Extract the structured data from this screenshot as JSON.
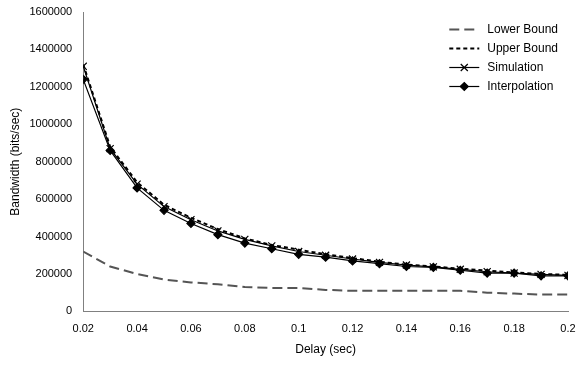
{
  "chart_data": {
    "type": "line",
    "x_label": "Delay (sec)",
    "y_label": "Bandwidth (bits/sec)",
    "x": [
      0.02,
      0.03,
      0.04,
      0.05,
      0.06,
      0.07,
      0.08,
      0.09,
      0.1,
      0.11,
      0.12,
      0.13,
      0.14,
      0.15,
      0.16,
      0.17,
      0.18,
      0.19,
      0.2
    ],
    "series": [
      {
        "name": "Lower Bound",
        "color": "#555555",
        "line_style": "longdash",
        "marker": "none",
        "values": [
          320000,
          240000,
          200000,
          170000,
          155000,
          145000,
          130000,
          125000,
          125000,
          115000,
          110000,
          110000,
          110000,
          110000,
          110000,
          100000,
          95000,
          90000,
          90000
        ]
      },
      {
        "name": "Upper Bound",
        "color": "#000000",
        "line_style": "dashed",
        "marker": "none",
        "values": [
          1320000,
          880000,
          690000,
          570000,
          500000,
          440000,
          390000,
          355000,
          330000,
          305000,
          285000,
          265000,
          250000,
          240000,
          228000,
          218000,
          208000,
          200000,
          195000
        ]
      },
      {
        "name": "Simulation",
        "color": "#000000",
        "line_style": "solid",
        "marker": "x",
        "values": [
          1310000,
          870000,
          680000,
          560000,
          490000,
          430000,
          385000,
          350000,
          320000,
          300000,
          280000,
          262000,
          248000,
          238000,
          225000,
          212000,
          205000,
          198000,
          192000
        ]
      },
      {
        "name": "Interpolation",
        "color": "#000000",
        "line_style": "solid",
        "marker": "diamond",
        "values": [
          1240000,
          860000,
          660000,
          540000,
          470000,
          410000,
          365000,
          335000,
          305000,
          290000,
          270000,
          255000,
          240000,
          235000,
          220000,
          205000,
          205000,
          190000,
          190000
        ]
      }
    ],
    "xlim": [
      0.02,
      0.2
    ],
    "xticks": [
      0.02,
      0.04,
      0.06,
      0.08,
      0.1,
      0.12,
      0.14,
      0.16,
      0.18,
      0.2
    ],
    "ylim": [
      0,
      1600000
    ],
    "yticks": [
      0,
      200000,
      400000,
      600000,
      800000,
      1000000,
      1200000,
      1400000,
      1600000
    ],
    "grid": false,
    "legend": "top-right"
  }
}
